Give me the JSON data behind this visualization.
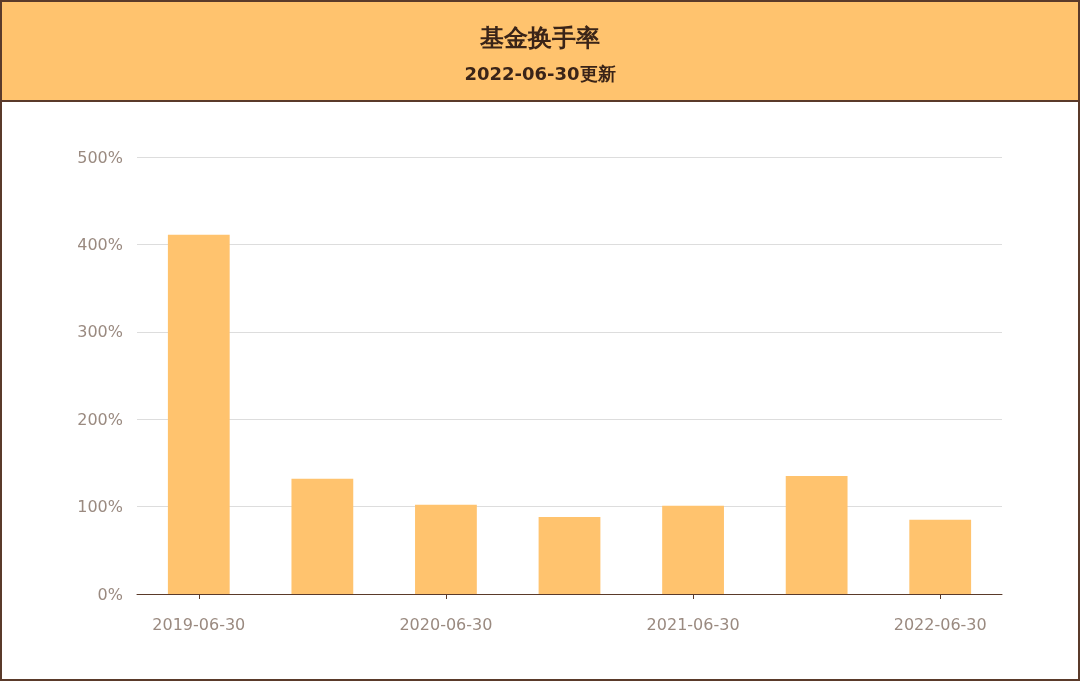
{
  "chart_data": {
    "type": "bar",
    "title": "基金换手率",
    "subtitle": "2022-06-30更新",
    "categories": [
      "2019-06-30",
      null,
      "2020-06-30",
      null,
      "2021-06-30",
      null,
      "2022-06-30"
    ],
    "values": [
      411,
      132,
      102,
      88,
      101,
      135,
      85
    ],
    "color": "#ffc36e",
    "ylim": [
      0,
      500
    ],
    "yticks": [
      {
        "value": 0,
        "label": "0%"
      },
      {
        "value": 100,
        "label": "100%"
      },
      {
        "value": 200,
        "label": "200%"
      },
      {
        "value": 300,
        "label": "300%"
      },
      {
        "value": 400,
        "label": "400%"
      },
      {
        "value": 500,
        "label": "500%"
      }
    ],
    "grid": "y"
  }
}
